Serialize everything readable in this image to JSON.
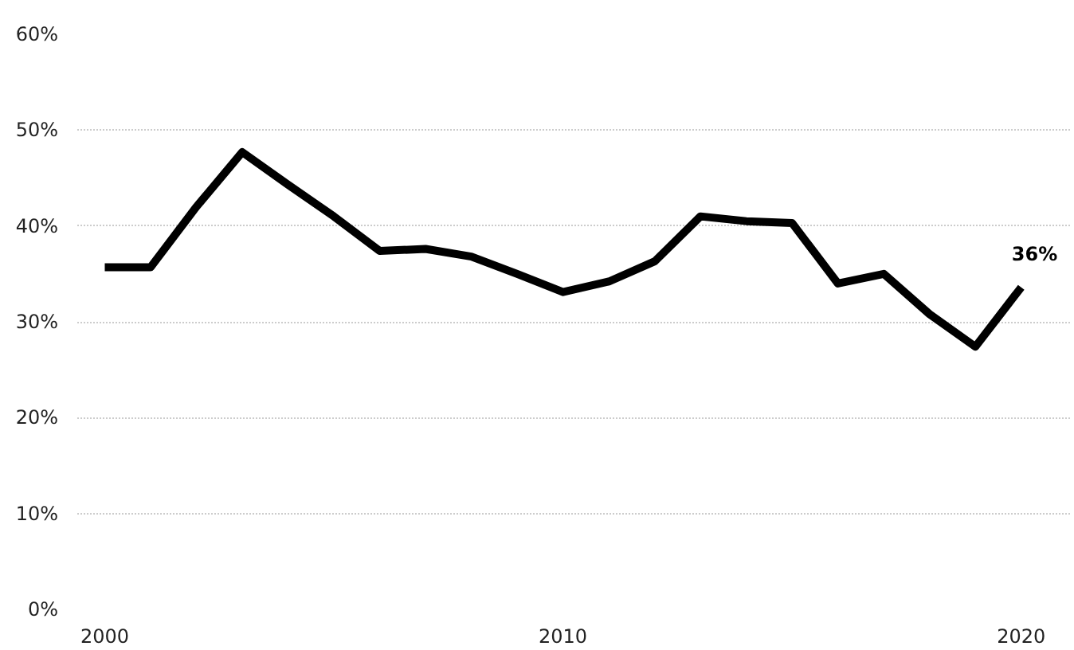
{
  "chart_data": {
    "type": "line",
    "x": [
      2000,
      2001,
      2002,
      2003,
      2004,
      2005,
      2006,
      2007,
      2008,
      2009,
      2010,
      2011,
      2012,
      2013,
      2014,
      2015,
      2016,
      2017,
      2018,
      2019,
      2020
    ],
    "series": [
      {
        "color": "#000000",
        "values": [
          35.7,
          35.7,
          42.0,
          47.7,
          44.3,
          41.0,
          37.4,
          37.6,
          36.8,
          35.0,
          33.1,
          34.2,
          36.3,
          41.0,
          40.5,
          40.3,
          34.0,
          35.0,
          30.8,
          27.4,
          33.6
        ]
      }
    ],
    "annotations": [
      {
        "text": "36%",
        "x": 2020,
        "y": 33.6
      }
    ],
    "xlim": [
      1999.4,
      2021.1
    ],
    "xticks": [
      2000,
      2010,
      2020
    ],
    "ylim": [
      0,
      60
    ],
    "yticks": [
      {
        "value": 0,
        "label": "0%"
      },
      {
        "value": 10,
        "label": "10%"
      },
      {
        "value": 20,
        "label": "20%"
      },
      {
        "value": 30,
        "label": "30%"
      },
      {
        "value": 40,
        "label": "40%"
      },
      {
        "value": 50,
        "label": "50%"
      },
      {
        "value": 60,
        "label": "60%"
      }
    ],
    "grid": "y",
    "marker": "none",
    "line_style": "solid"
  }
}
